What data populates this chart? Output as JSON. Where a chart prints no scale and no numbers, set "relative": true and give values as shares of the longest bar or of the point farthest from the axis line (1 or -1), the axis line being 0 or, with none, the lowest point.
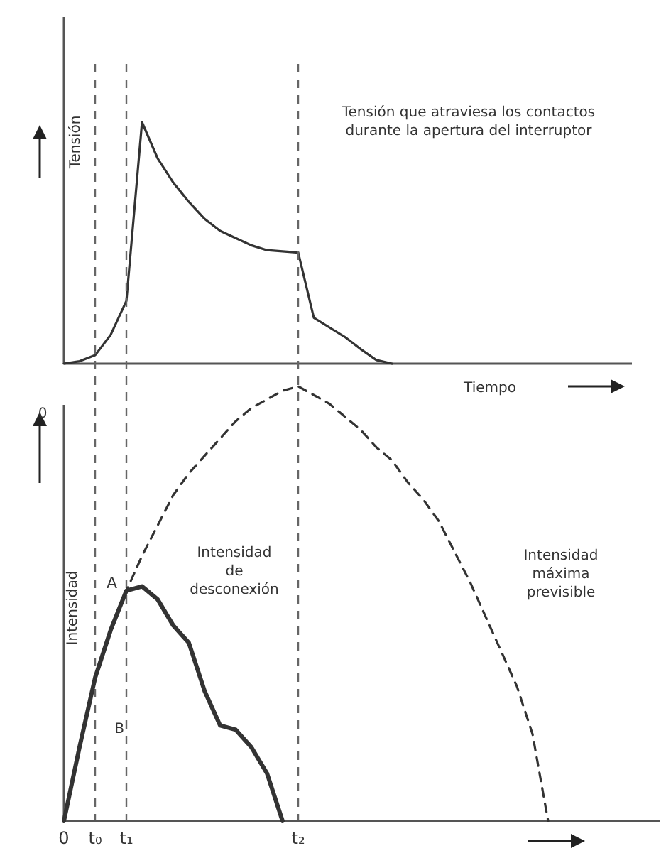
{
  "chart_data": [
    {
      "type": "line",
      "relative": true,
      "xlabel": "Tiempo",
      "ylabel": "Tensión",
      "categories": [
        null,
        null,
        null,
        null,
        null,
        null,
        null,
        null,
        null,
        null,
        null,
        null,
        null,
        null,
        null,
        null,
        null,
        null,
        null,
        null,
        null,
        null,
        null,
        null,
        null,
        null,
        null,
        null,
        null,
        null,
        null,
        null,
        null,
        null,
        null,
        null,
        null
      ],
      "annotations": [
        "Tensión que atraviesa los contactos durante la apertura del interruptor"
      ],
      "series": [
        {
          "color": "#333333",
          "line_style": "solid",
          "values": [
            0,
            0.01,
            0.035,
            0.12,
            0.26,
            1,
            0.85,
            0.75,
            0.67,
            0.6,
            0.55,
            0.52,
            0.49,
            0.47,
            0.465,
            0.46,
            0.19,
            0.15,
            0.11,
            0.06,
            0.015,
            0,
            null,
            null,
            null,
            null,
            null,
            null,
            null,
            null,
            null,
            null,
            null,
            null,
            null,
            null,
            null
          ]
        }
      ]
    },
    {
      "type": "line",
      "relative": true,
      "ylabel": "Intensidad",
      "categories": [
        "0",
        null,
        "t₀",
        null,
        "t₁",
        null,
        null,
        null,
        null,
        null,
        null,
        null,
        null,
        null,
        null,
        "t₂",
        null,
        null,
        null,
        null,
        null,
        null,
        null,
        null,
        null,
        null,
        null,
        null,
        null,
        null,
        null,
        null,
        null,
        null,
        null,
        null,
        null
      ],
      "annotations": [
        "Intensidad de desconexión",
        "Intensidad máxima previsible",
        "0",
        "B",
        {
          "text": "A",
          "x": "t₁",
          "y": 0.53
        }
      ],
      "ref_lines": [
        {
          "axis": "x",
          "value": "t₀",
          "line_style": "dashed"
        },
        {
          "axis": "x",
          "value": "t₁",
          "line_style": "dashed"
        },
        {
          "axis": "x",
          "value": "t₂",
          "line_style": "dashed"
        }
      ],
      "series": [
        {
          "color": "#333333",
          "line_style": "solid",
          "values": [
            0,
            0.17,
            0.33,
            0.44,
            0.53,
            0.54,
            0.51,
            0.45,
            0.41,
            0.3,
            0.22,
            0.21,
            0.17,
            0.11,
            0,
            null,
            null,
            null,
            null,
            null,
            null,
            null,
            null,
            null,
            null,
            null,
            null,
            null,
            null,
            null,
            null,
            null,
            null,
            null,
            null,
            null,
            null
          ]
        },
        {
          "color": "#333333",
          "line_style": "dashed",
          "values": [
            0,
            0.17,
            0.33,
            0.44,
            0.53,
            0.61,
            0.68,
            0.75,
            0.8,
            0.84,
            0.88,
            0.92,
            0.95,
            0.97,
            0.99,
            1,
            0.98,
            0.96,
            0.93,
            0.9,
            0.86,
            0.83,
            0.78,
            0.74,
            0.69,
            0.62,
            0.55,
            0.47,
            0.39,
            0.31,
            0.2,
            0,
            null,
            null,
            null,
            null,
            null
          ]
        }
      ]
    }
  ]
}
